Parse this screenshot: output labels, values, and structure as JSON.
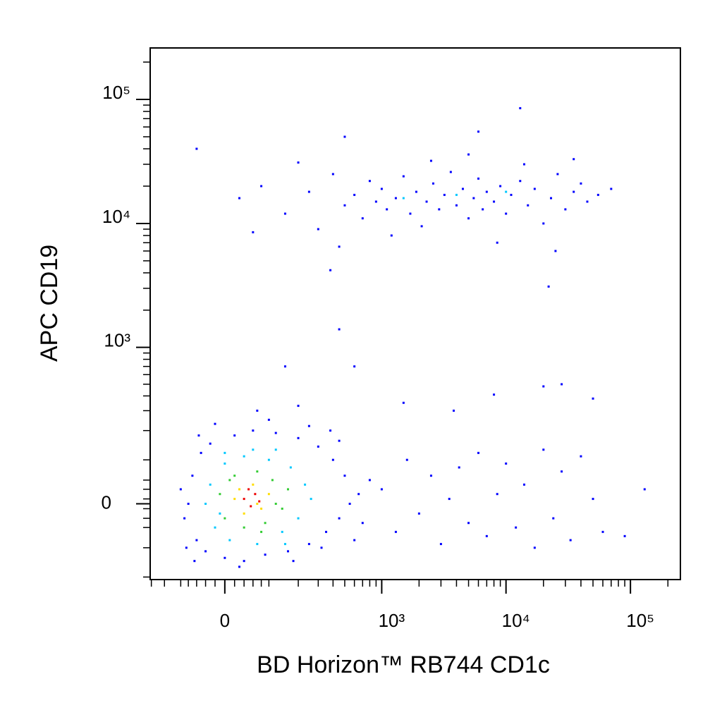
{
  "chart_data": {
    "type": "scatter",
    "scale": "biexponential",
    "x_label": "BD Horizon™ RB744 CD1c",
    "y_label": "APC CD19",
    "xlim": [
      -205,
      252000
    ],
    "ylim": [
      -211,
      260000
    ],
    "xticks": [
      0,
      {
        "value": 1000,
        "label": "10³"
      },
      {
        "value": 10000,
        "label": "10⁴"
      },
      {
        "value": 100000,
        "label": "10⁵"
      }
    ],
    "yticks": [
      0,
      {
        "value": 1000,
        "label": "10³"
      },
      {
        "value": 10000,
        "label": "10⁴"
      },
      {
        "value": 100000,
        "label": "10⁵"
      }
    ],
    "xminorticks": [
      -200,
      -150,
      -100,
      -80,
      -60,
      -40,
      -20,
      20,
      40,
      60,
      80,
      100,
      200,
      300,
      400,
      500,
      600,
      700,
      800,
      900,
      2000,
      3000,
      4000,
      5000,
      6000,
      7000,
      8000,
      9000,
      20000,
      30000,
      40000,
      50000,
      60000,
      70000,
      80000,
      90000,
      200000
    ],
    "yminorticks": [
      -200,
      -100,
      -50,
      -30,
      -10,
      10,
      30,
      50,
      100,
      200,
      300,
      400,
      500,
      600,
      700,
      800,
      900,
      2000,
      3000,
      4000,
      5000,
      6000,
      7000,
      8000,
      9000,
      20000,
      30000,
      40000,
      50000,
      60000,
      70000,
      80000,
      90000,
      200000
    ],
    "series": [
      {
        "color": "#0000ff",
        "x": [
          30,
          80,
          150,
          250,
          300,
          400,
          500,
          600,
          700,
          800,
          900,
          1000,
          1100,
          1300,
          1500,
          1700,
          1900,
          2100,
          2300,
          2600,
          2900,
          3200,
          3600,
          4000,
          4500,
          5000,
          5500,
          6000,
          6500,
          7000,
          8000,
          9000,
          10000,
          11000,
          13000,
          15000,
          17000,
          20000,
          23000,
          26000,
          30000,
          35000,
          40000,
          45000,
          55000,
          70000,
          60,
          200,
          450,
          1200,
          2500,
          5000,
          8500,
          14000,
          25000,
          35000,
          -60,
          380,
          22000,
          13000,
          500,
          6000,
          1000,
          1300,
          1600,
          2000,
          2500,
          3000,
          3500,
          4200,
          5000,
          6000,
          7000,
          8500,
          10000,
          12000,
          14000,
          17000,
          20000,
          24000,
          28000,
          33000,
          40000,
          50000,
          60000,
          90000,
          130000,
          1500,
          3800,
          8000,
          20000,
          28000,
          50000,
          450,
          600,
          150,
          -80,
          -70,
          -60,
          -50,
          -40,
          -30,
          0,
          20,
          40,
          60,
          90,
          120,
          160,
          200,
          250,
          300,
          350,
          400,
          450,
          500,
          550,
          650,
          700,
          800,
          -90,
          -20,
          100,
          250,
          180,
          -100,
          -85,
          320,
          600,
          450,
          380,
          -55,
          70,
          200,
          30,
          -65
        ],
        "values": [
          16000,
          20000,
          12000,
          18000,
          9000,
          25000,
          14000,
          17000,
          11000,
          22000,
          15000,
          19000,
          13000,
          16000,
          24000,
          12000,
          18000,
          9500,
          15000,
          21000,
          13000,
          17000,
          26000,
          14000,
          19000,
          11000,
          16000,
          23000,
          13000,
          18000,
          15000,
          20000,
          12000,
          17000,
          22000,
          14000,
          19000,
          10000,
          16000,
          25000,
          13000,
          18000,
          21000,
          15000,
          17000,
          19000,
          8500,
          31000,
          6500,
          8000,
          32000,
          36000,
          7000,
          30000,
          6000,
          33000,
          40000,
          4200,
          3100,
          85000,
          50000,
          55000,
          30,
          -60,
          100,
          -20,
          60,
          -90,
          10,
          80,
          -40,
          120,
          -70,
          20,
          90,
          -50,
          40,
          -100,
          130,
          -30,
          70,
          -80,
          110,
          10,
          -60,
          -70,
          30,
          350,
          300,
          410,
          480,
          500,
          380,
          1400,
          700,
          700,
          0,
          60,
          -80,
          120,
          -110,
          150,
          -130,
          180,
          -140,
          200,
          -120,
          190,
          -110,
          170,
          -90,
          140,
          -60,
          100,
          -30,
          60,
          0,
          20,
          -40,
          50,
          -30,
          230,
          250,
          220,
          -140,
          30,
          -100,
          -100,
          -80,
          160,
          200,
          180,
          300,
          330,
          -160,
          -140
        ]
      },
      {
        "color": "#00c8ff",
        "x": [
          -30,
          -20,
          0,
          10,
          40,
          70,
          100,
          140,
          170,
          200,
          230,
          -40,
          0,
          120,
          260,
          150,
          60,
          -10,
          1500,
          4000,
          10000
        ],
        "values": [
          40,
          -50,
          90,
          -80,
          110,
          -90,
          100,
          -60,
          80,
          -30,
          40,
          0,
          120,
          130,
          10,
          -90,
          130,
          -20,
          16000,
          17000,
          18000
        ]
      },
      {
        "color": "#33cc33",
        "x": [
          -10,
          0,
          20,
          40,
          70,
          90,
          110,
          140,
          160,
          10,
          80,
          120
        ],
        "values": [
          20,
          -30,
          60,
          -50,
          70,
          -40,
          50,
          -10,
          30,
          50,
          -60,
          0
        ]
      },
      {
        "color": "#ffdd00",
        "x": [
          20,
          40,
          60,
          80,
          100,
          30,
          70
        ],
        "values": [
          10,
          -20,
          40,
          -10,
          20,
          30,
          0
        ]
      },
      {
        "color": "#ee0000",
        "x": [
          40,
          55,
          65,
          50,
          75
        ],
        "values": [
          10,
          -5,
          20,
          30,
          5
        ]
      }
    ]
  }
}
